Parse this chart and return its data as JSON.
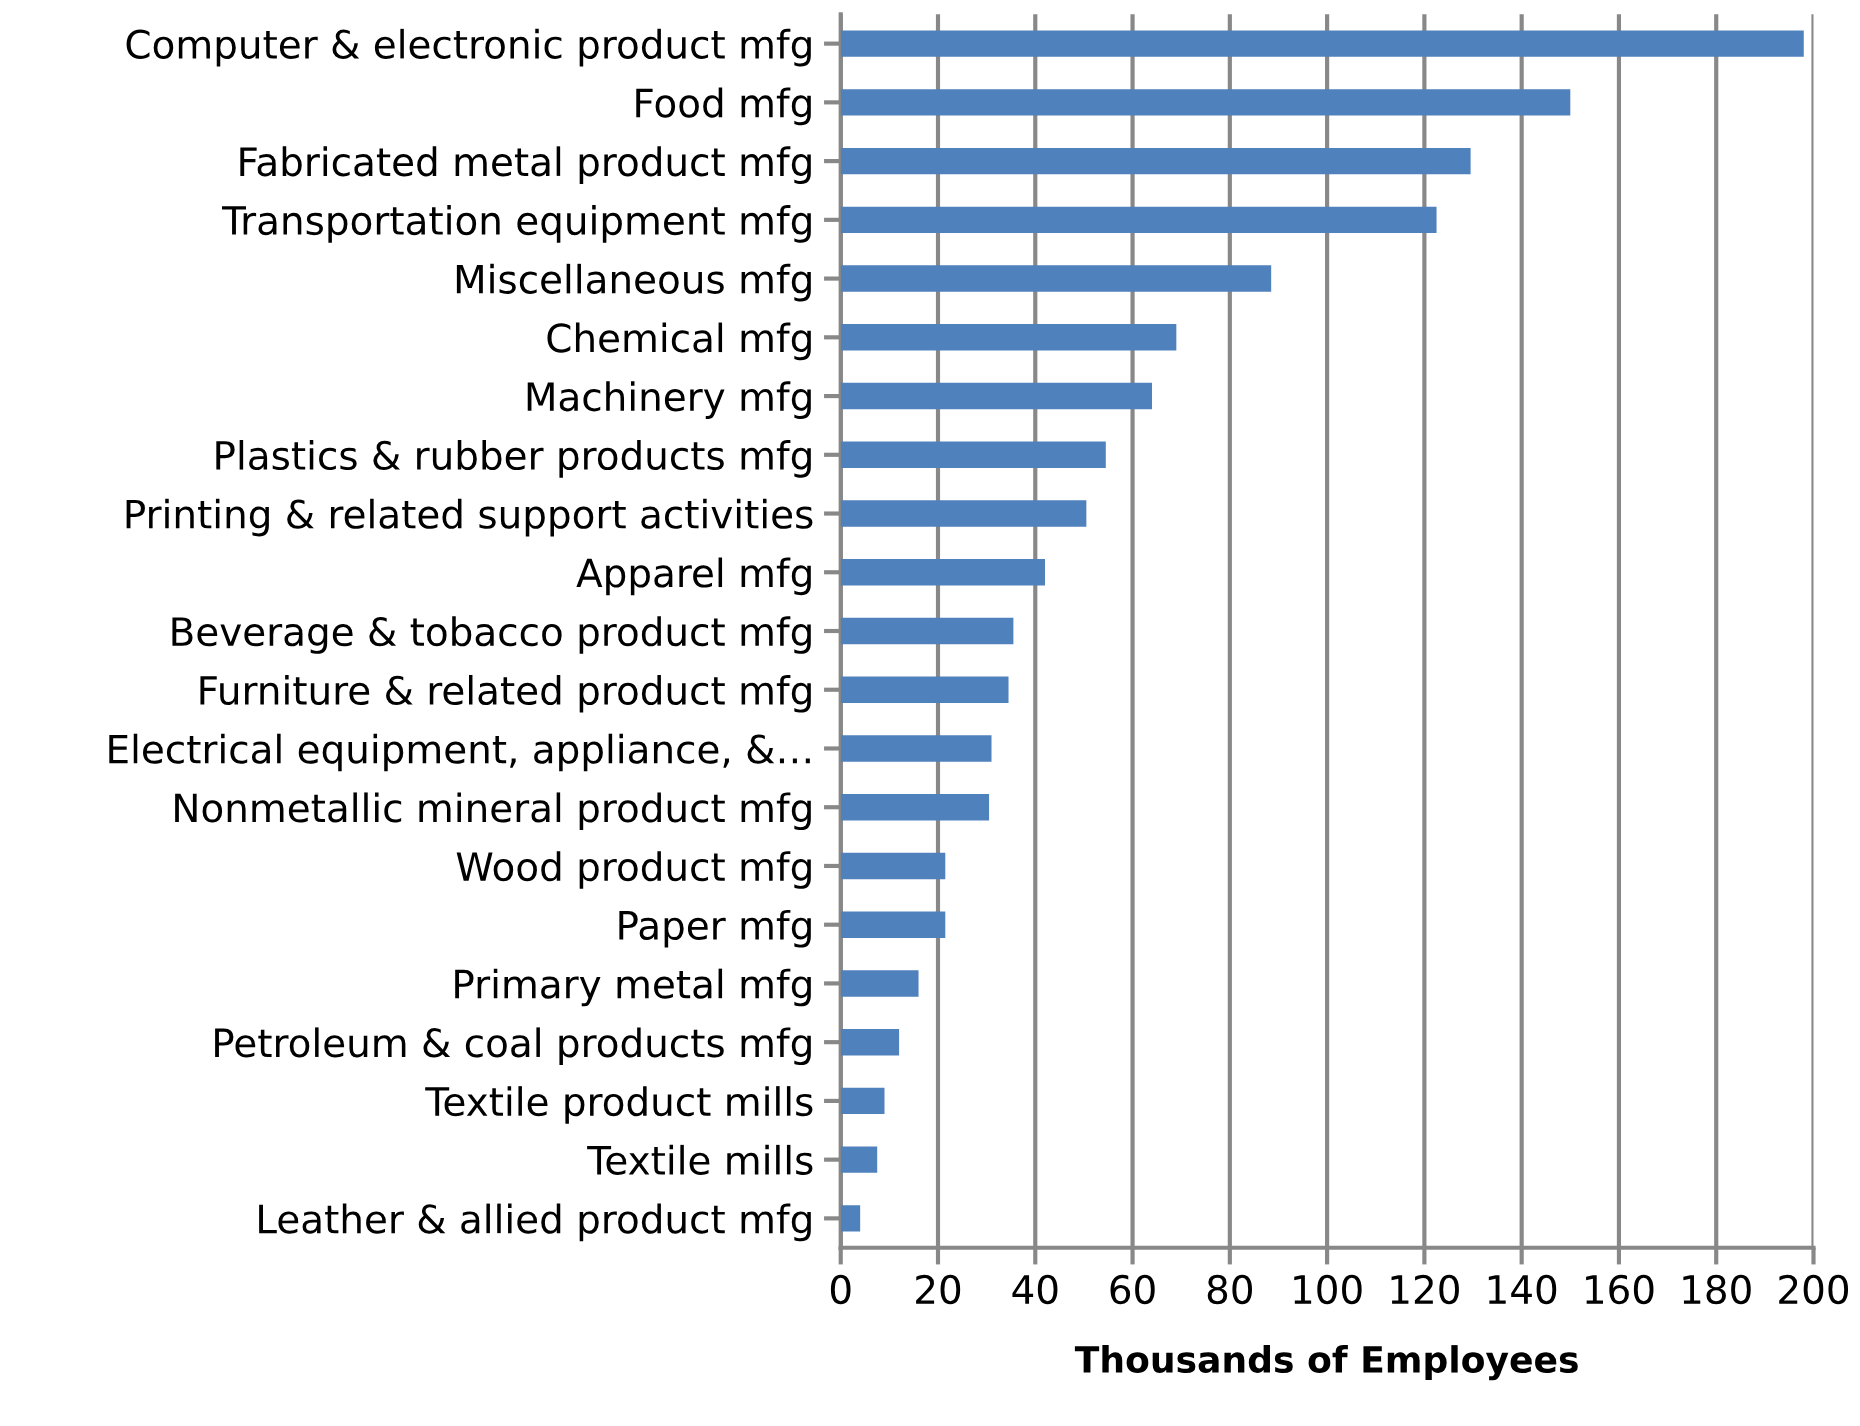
{
  "chart_data": {
    "type": "bar",
    "orientation": "horizontal",
    "xlabel": "Thousands of Employees",
    "categories": [
      "Computer & electronic product mfg",
      "Food mfg",
      "Fabricated metal product mfg",
      "Transportation equipment mfg",
      "Miscellaneous mfg",
      "Chemical mfg",
      "Machinery mfg",
      "Plastics & rubber products mfg",
      "Printing & related support activities",
      "Apparel mfg",
      "Beverage & tobacco product mfg",
      "Furniture & related product mfg",
      "Electrical equipment, appliance, &…",
      "Nonmetallic mineral product mfg",
      "Wood product mfg",
      "Paper mfg",
      "Primary metal mfg",
      "Petroleum & coal products mfg",
      "Textile product mills",
      "Textile mills",
      "Leather & allied product mfg"
    ],
    "values": [
      198,
      150,
      129.5,
      122.5,
      88.5,
      69,
      64,
      54.5,
      50.5,
      42,
      35.5,
      34.5,
      31,
      30.5,
      21.5,
      21.5,
      16,
      12,
      9,
      7.5,
      4
    ],
    "color": "#4f81bd",
    "xlim": [
      0,
      200
    ],
    "xticks": [
      0,
      20,
      40,
      60,
      80,
      100,
      120,
      140,
      160,
      180,
      200
    ],
    "grid": "x"
  }
}
